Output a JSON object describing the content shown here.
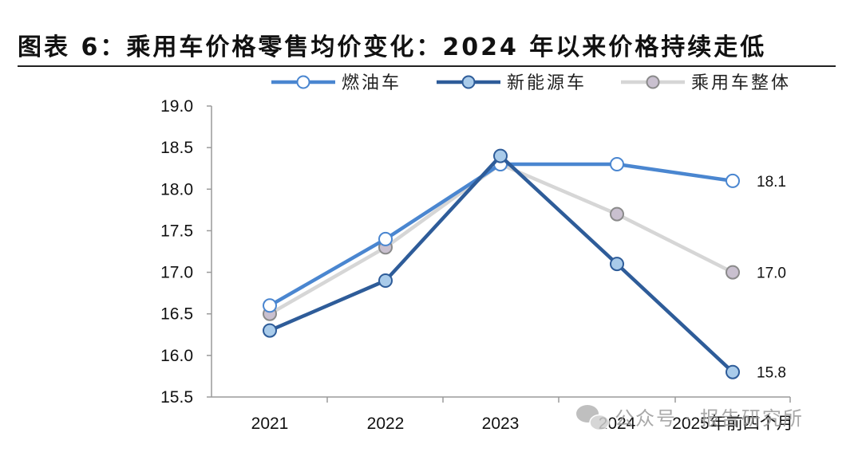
{
  "page": {
    "title": "图表 6：乘用车价格零售均价变化：2024 年以来价格持续走低"
  },
  "watermark": {
    "icon": "wechat-icon",
    "text": "公众号 · 报告研究所"
  },
  "chart_data": {
    "type": "line",
    "title": "",
    "xlabel": "",
    "ylabel": "",
    "categories": [
      "2021",
      "2022",
      "2023",
      "2024",
      "2025年前四个月"
    ],
    "ylim": [
      15.5,
      19.0
    ],
    "yticks": [
      "19.0",
      "18.5",
      "18.0",
      "17.5",
      "17.0",
      "16.5",
      "16.0",
      "15.5"
    ],
    "grid": false,
    "legend_position": "top",
    "series": [
      {
        "name": "燃油车",
        "values": [
          16.6,
          17.4,
          18.3,
          18.3,
          18.1
        ],
        "color": "#4a86d0",
        "marker_fill": "#ffffff",
        "end_label": "18.1"
      },
      {
        "name": "新能源车",
        "values": [
          16.3,
          16.9,
          18.4,
          17.1,
          15.8
        ],
        "color": "#2e5c99",
        "marker_fill": "#a9cbea",
        "end_label": "15.8"
      },
      {
        "name": "乘用车整体",
        "values": [
          16.5,
          17.3,
          18.3,
          17.7,
          17.0
        ],
        "color": "#d6d6d6",
        "marker_fill": "#c9c0cf",
        "end_label": "17.0"
      }
    ]
  }
}
